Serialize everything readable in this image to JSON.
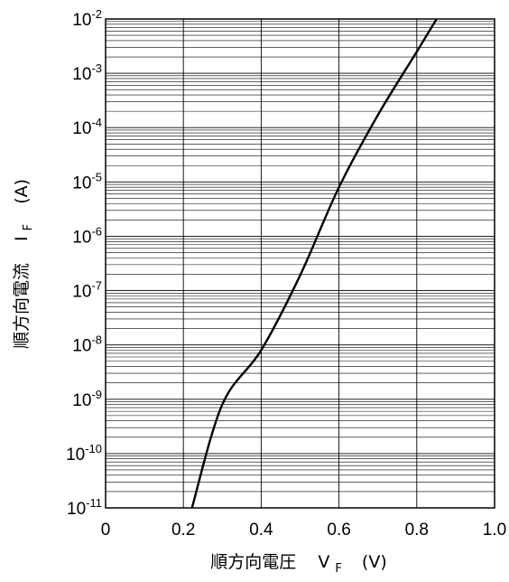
{
  "chart_data": {
    "type": "line",
    "xlabel": {
      "text": "順方向電圧",
      "symbol": "V",
      "subscript": "F",
      "unit": "(V)"
    },
    "ylabel": {
      "text": "順方向電流",
      "symbol": "I",
      "subscript": "F",
      "unit": "(A)"
    },
    "xlim": [
      0,
      1.0
    ],
    "ylim": [
      1e-11,
      0.01
    ],
    "yscale": "log",
    "grid": true,
    "x_ticks": [
      "0",
      "0.2",
      "0.4",
      "0.6",
      "0.8",
      "1.0"
    ],
    "y_ticks": [
      {
        "base": "10",
        "exp": "-11"
      },
      {
        "base": "10",
        "exp": "-10"
      },
      {
        "base": "10",
        "exp": "-9"
      },
      {
        "base": "10",
        "exp": "-8"
      },
      {
        "base": "10",
        "exp": "-7"
      },
      {
        "base": "10",
        "exp": "-6"
      },
      {
        "base": "10",
        "exp": "-5"
      },
      {
        "base": "10",
        "exp": "-4"
      },
      {
        "base": "10",
        "exp": "-3"
      },
      {
        "base": "10",
        "exp": "-2"
      }
    ],
    "series": [
      {
        "color": "#000000",
        "x": [
          0.222,
          0.3,
          0.4,
          0.5,
          0.6,
          0.7,
          0.8,
          0.851
        ],
        "y": [
          1e-11,
          8e-10,
          8e-09,
          1.9e-07,
          8e-06,
          0.00017,
          0.0025,
          0.01
        ]
      }
    ]
  }
}
